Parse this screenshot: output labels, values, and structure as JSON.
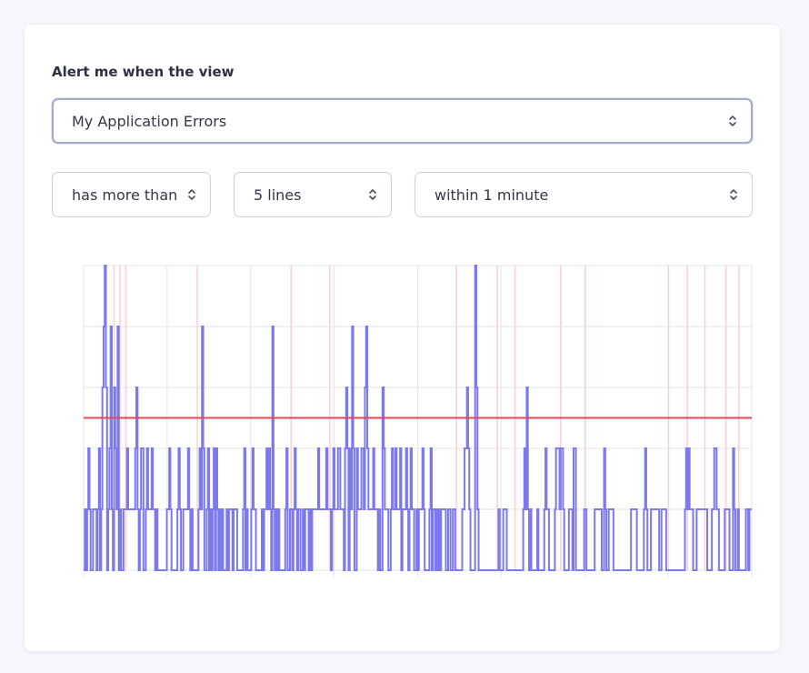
{
  "form": {
    "label": "Alert me when the view",
    "view_select": {
      "value": "My Application Errors",
      "icon": "chevron-up-down-icon"
    },
    "condition_select": {
      "value": "has more than",
      "icon": "chevron-up-down-icon"
    },
    "count_select": {
      "value": "5 lines",
      "icon": "chevron-up-down-icon"
    },
    "window_select": {
      "value": "within 1 minute",
      "icon": "chevron-up-down-icon"
    }
  },
  "colors": {
    "series": "#7b79ec",
    "threshold": "#e8455a",
    "alert_marker": "#fad1d8",
    "grid": "#e6e6ea"
  },
  "chart_data": {
    "type": "line",
    "title": "",
    "xlabel": "",
    "ylabel": "",
    "ylim": [
      0,
      5
    ],
    "grid": true,
    "threshold": 2.5,
    "series": [
      {
        "values": [
          0,
          1,
          0,
          1,
          2,
          1,
          0,
          0,
          1,
          1,
          1,
          0,
          1,
          2,
          0,
          1,
          3,
          4,
          5,
          3,
          0,
          1,
          2,
          4,
          1,
          0,
          3,
          2,
          1,
          4,
          0,
          1,
          0,
          0,
          1,
          1,
          1,
          2,
          1,
          1,
          1,
          1,
          1,
          1,
          2,
          3,
          1,
          0,
          1,
          2,
          2,
          0,
          0,
          1,
          2,
          1,
          1,
          1,
          2,
          1,
          1,
          0,
          1,
          0,
          0,
          0,
          0,
          0,
          0,
          0,
          0,
          1,
          1,
          2,
          1,
          0,
          0,
          0,
          0,
          0,
          1,
          2,
          1,
          0,
          0,
          1,
          1,
          1,
          1,
          2,
          1,
          0,
          1,
          0,
          0,
          0,
          0,
          0,
          1,
          2,
          1,
          4,
          2,
          0,
          0,
          1,
          2,
          0,
          1,
          0,
          1,
          2,
          0,
          2,
          1,
          0,
          1,
          0,
          1,
          0,
          0,
          0,
          1,
          0,
          1,
          1,
          1,
          0,
          1,
          1,
          1,
          0,
          0,
          0,
          0,
          0,
          1,
          2,
          0,
          1,
          0,
          0,
          0,
          1,
          2,
          1,
          1,
          0,
          0,
          0,
          0,
          0,
          1,
          0,
          1,
          1,
          2,
          1,
          2,
          1,
          0,
          4,
          1,
          0,
          1,
          0,
          1,
          0,
          0,
          0,
          0,
          0,
          1,
          2,
          0,
          0,
          1,
          1,
          0,
          1,
          2,
          1,
          0,
          1,
          1,
          0,
          0,
          1,
          0,
          1,
          1,
          1,
          0,
          1,
          0,
          1,
          1,
          1,
          1,
          1,
          2,
          1,
          1,
          1,
          1,
          1,
          1,
          2,
          1,
          1,
          1,
          0,
          1,
          2,
          1,
          1,
          1,
          2,
          2,
          1,
          1,
          1,
          0,
          2,
          3,
          2,
          0,
          2,
          1,
          4,
          2,
          0,
          0,
          2,
          1,
          1,
          1,
          2,
          2,
          1,
          3,
          4,
          2,
          1,
          1,
          1,
          1,
          2,
          1,
          1,
          1,
          0,
          1,
          0,
          0,
          3,
          2,
          1,
          1,
          1,
          0,
          0,
          1,
          2,
          1,
          1,
          2,
          1,
          1,
          1,
          2,
          0,
          1,
          1,
          1,
          2,
          1,
          0,
          1,
          2,
          1,
          1,
          0,
          0,
          1,
          0,
          1,
          1,
          1,
          2,
          1,
          0,
          0,
          0,
          0,
          1,
          2,
          0,
          1,
          1,
          0,
          1,
          0,
          1,
          0,
          1,
          1,
          1,
          1,
          0,
          0,
          1,
          1,
          0,
          0,
          1,
          1,
          0,
          0,
          0,
          0,
          0,
          0,
          1,
          1,
          2,
          2,
          3,
          2,
          1,
          0,
          0,
          0,
          0,
          5,
          3,
          1,
          0,
          0,
          0,
          0,
          0,
          0,
          0,
          0,
          0,
          0,
          0,
          0,
          0,
          0,
          0,
          0,
          0,
          1,
          0,
          0,
          0,
          1,
          1,
          1,
          0,
          0,
          0,
          0,
          0,
          0,
          0,
          0,
          0,
          0,
          0,
          0,
          0,
          0,
          1,
          2,
          1,
          3,
          1,
          0,
          1,
          0,
          0,
          0,
          0,
          0,
          1,
          0,
          0,
          0,
          0,
          0,
          1,
          2,
          1,
          1,
          0,
          0,
          0,
          0,
          0,
          1,
          2,
          2,
          2,
          1,
          2,
          2,
          1,
          0,
          0,
          0,
          0,
          1,
          1,
          1,
          0,
          2,
          2,
          0,
          0,
          0,
          0,
          0,
          0,
          0,
          1,
          1,
          0,
          0,
          0,
          0,
          0,
          0,
          0,
          1,
          1,
          1,
          1,
          1,
          1,
          0,
          0,
          2,
          1,
          0,
          0,
          1,
          1,
          1,
          1,
          0,
          0,
          0,
          0,
          0,
          0,
          0,
          0,
          0,
          0,
          0,
          0,
          0,
          0,
          0,
          1,
          1,
          1,
          1,
          1,
          0,
          0,
          0,
          0,
          0,
          0,
          1,
          2,
          1,
          0,
          0,
          0,
          1,
          1,
          1,
          1,
          1,
          1,
          1,
          0,
          0,
          1,
          1,
          1,
          1,
          0,
          0,
          0,
          0,
          0,
          0,
          0,
          0,
          0,
          0,
          0,
          0,
          0,
          0,
          0,
          0,
          1,
          2,
          1,
          2,
          1,
          1,
          1,
          0,
          0,
          0,
          1,
          1,
          1,
          1,
          1,
          1,
          1,
          1,
          1,
          0,
          0,
          0,
          0,
          1,
          1,
          2,
          2,
          1,
          1,
          0,
          0,
          0,
          0,
          0,
          1,
          1,
          1,
          1,
          0,
          0,
          0,
          2,
          1,
          0,
          0,
          1,
          0,
          0,
          0,
          0,
          0,
          0,
          1,
          1,
          0,
          1,
          1,
          1
        ]
      }
    ],
    "alert_markers": [
      26,
      31,
      36,
      97,
      177,
      210,
      318,
      353,
      368,
      407,
      428,
      499,
      515,
      530,
      548,
      559
    ]
  }
}
